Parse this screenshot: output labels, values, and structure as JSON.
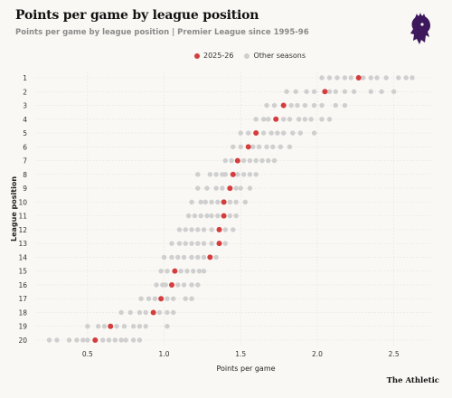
{
  "header": {
    "title": "Points per game by league position",
    "subtitle": "Points per game by league position | Premier League since 1995-96"
  },
  "legend": {
    "current": "2025-26",
    "other": "Other seasons"
  },
  "credit": "The Athletic",
  "colors": {
    "current": "#d43d3d",
    "other": "#cfcfcf",
    "logo": "#3d185c"
  },
  "chart_data": {
    "type": "scatter",
    "title": "Points per game by league position",
    "xlabel": "Points per game",
    "ylabel": "League position",
    "xlim": [
      0.2,
      2.75
    ],
    "xticks": [
      0.5,
      1.0,
      1.5,
      2.0,
      2.5
    ],
    "xtick_labels": [
      "0.5",
      "1.0",
      "1.5",
      "2.0",
      "2.5"
    ],
    "categories": [
      "1",
      "2",
      "3",
      "4",
      "5",
      "6",
      "7",
      "8",
      "9",
      "10",
      "11",
      "12",
      "13",
      "14",
      "15",
      "16",
      "17",
      "18",
      "19",
      "20"
    ],
    "series": [
      {
        "name": "2025-26",
        "values": [
          2.27,
          2.05,
          1.78,
          1.73,
          1.6,
          1.55,
          1.48,
          1.45,
          1.43,
          1.39,
          1.39,
          1.36,
          1.36,
          1.3,
          1.07,
          1.05,
          0.98,
          0.93,
          0.65,
          0.55
        ]
      },
      {
        "name": "Other seasons",
        "values": [
          [
            2.03,
            2.08,
            2.13,
            2.18,
            2.22,
            2.3,
            2.35,
            2.39,
            2.45,
            2.53,
            2.58,
            2.62
          ],
          [
            1.8,
            1.86,
            1.93,
            1.98,
            2.08,
            2.12,
            2.18,
            2.24,
            2.35,
            2.42,
            2.5
          ],
          [
            1.67,
            1.72,
            1.83,
            1.87,
            1.92,
            1.98,
            2.03,
            2.12,
            2.18
          ],
          [
            1.6,
            1.65,
            1.68,
            1.78,
            1.82,
            1.88,
            1.92,
            1.96,
            2.03,
            2.08
          ],
          [
            1.5,
            1.55,
            1.65,
            1.7,
            1.74,
            1.78,
            1.84,
            1.89,
            1.98
          ],
          [
            1.45,
            1.5,
            1.58,
            1.62,
            1.67,
            1.71,
            1.76,
            1.82
          ],
          [
            1.4,
            1.44,
            1.52,
            1.56,
            1.6,
            1.64,
            1.68,
            1.72
          ],
          [
            1.22,
            1.3,
            1.34,
            1.38,
            1.4,
            1.48,
            1.52,
            1.56,
            1.6
          ],
          [
            1.22,
            1.28,
            1.34,
            1.38,
            1.47,
            1.5,
            1.56
          ],
          [
            1.18,
            1.24,
            1.27,
            1.31,
            1.35,
            1.43,
            1.47,
            1.53
          ],
          [
            1.16,
            1.2,
            1.24,
            1.28,
            1.31,
            1.35,
            1.43,
            1.47
          ],
          [
            1.1,
            1.14,
            1.18,
            1.22,
            1.26,
            1.31,
            1.4,
            1.45
          ],
          [
            1.05,
            1.1,
            1.14,
            1.18,
            1.22,
            1.26,
            1.31,
            1.4
          ],
          [
            1.0,
            1.05,
            1.09,
            1.13,
            1.18,
            1.22,
            1.26,
            1.34
          ],
          [
            0.98,
            1.02,
            1.11,
            1.15,
            1.19,
            1.23,
            1.26
          ],
          [
            0.95,
            0.99,
            1.01,
            1.09,
            1.13,
            1.18,
            1.22
          ],
          [
            0.85,
            0.9,
            0.94,
            1.02,
            1.06,
            1.14,
            1.18
          ],
          [
            0.72,
            0.78,
            0.84,
            0.88,
            0.97,
            1.02,
            1.06
          ],
          [
            0.5,
            0.57,
            0.61,
            0.69,
            0.74,
            0.8,
            0.84,
            0.88,
            1.02
          ],
          [
            0.25,
            0.3,
            0.38,
            0.43,
            0.47,
            0.5,
            0.6,
            0.64,
            0.68,
            0.72,
            0.75,
            0.8,
            0.84
          ]
        ]
      }
    ],
    "grid": true,
    "legend_position": "top-center"
  }
}
